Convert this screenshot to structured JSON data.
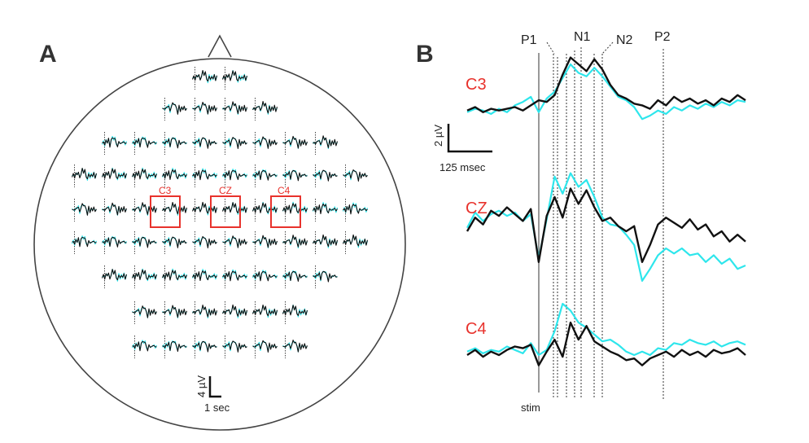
{
  "colors": {
    "black": "#111111",
    "cyan": "#2ee6ec",
    "red": "#e8322c",
    "outline": "#444444"
  },
  "panel_a": {
    "letter": "A",
    "electrode_labels": [
      "C3",
      "CZ",
      "C4"
    ],
    "scalebar": {
      "y_label": "4 µV",
      "x_label": "1 sec"
    }
  },
  "panel_b": {
    "letter": "B",
    "markers": [
      "P1",
      "N1",
      "N2",
      "P2"
    ],
    "stim_label": "stim",
    "scalebar": {
      "y_label": "2 µV",
      "x_label": "125 msec"
    }
  },
  "chart_data": [
    {
      "type": "line",
      "title": "",
      "electrodes": [
        {
          "row": 1,
          "count": 2
        },
        {
          "row": 2,
          "count": 4
        },
        {
          "row": 3,
          "count": 8
        },
        {
          "row": 4,
          "count": 10
        },
        {
          "row": 5,
          "count": 10,
          "highlighted": [
            "C3",
            "CZ",
            "C4"
          ]
        },
        {
          "row": 6,
          "count": 10
        },
        {
          "row": 7,
          "count": 8
        },
        {
          "row": 8,
          "count": 6
        },
        {
          "row": 9,
          "count": 6
        }
      ],
      "series": [
        {
          "name": "black"
        },
        {
          "name": "cyan"
        }
      ]
    },
    {
      "type": "line",
      "title": "",
      "xlabel": "",
      "ylabel": "",
      "panels": [
        {
          "label": "C3",
          "series": [
            {
              "name": "black",
              "values": [
                0.3,
                0.5,
                0.2,
                0.4,
                0.3,
                0.4,
                0.5,
                0.3,
                0.6,
                0.9,
                0.8,
                1.2,
                2.4,
                3.4,
                3.0,
                2.6,
                3.3,
                2.7,
                1.8,
                1.2,
                1.0,
                0.7,
                0.6,
                0.4,
                0.9,
                0.6,
                1.1,
                0.8,
                1.0,
                0.7,
                0.9,
                0.6,
                1.0,
                0.8,
                1.2,
                0.9
              ]
            },
            {
              "name": "cyan",
              "values": [
                0.2,
                0.4,
                0.3,
                0.1,
                0.4,
                0.2,
                0.6,
                0.8,
                1.1,
                0.2,
                1.0,
                1.4,
                2.2,
                3.0,
                2.5,
                2.3,
                2.8,
                2.3,
                1.7,
                1.1,
                0.9,
                0.5,
                -0.2,
                0.0,
                0.3,
                0.1,
                0.5,
                0.3,
                0.6,
                0.4,
                0.7,
                0.5,
                0.8,
                0.6,
                0.9,
                0.8
              ]
            }
          ]
        },
        {
          "label": "CZ",
          "series": [
            {
              "name": "black",
              "values": [
                0.0,
                0.8,
                0.4,
                1.2,
                0.9,
                1.4,
                1.0,
                0.6,
                1.3,
                -1.8,
                0.9,
                2.0,
                0.8,
                2.5,
                1.6,
                2.4,
                1.4,
                0.6,
                0.8,
                0.3,
                0.0,
                0.3,
                -1.8,
                -0.8,
                0.4,
                0.8,
                0.5,
                0.2,
                0.7,
                0.1,
                0.4,
                -0.3,
                0.0,
                -0.6,
                -0.2,
                -0.6
              ]
            },
            {
              "name": "cyan",
              "values": [
                0.2,
                1.1,
                0.6,
                1.0,
                1.2,
                0.9,
                1.1,
                0.6,
                1.0,
                -1.6,
                0.7,
                3.2,
                2.2,
                3.4,
                2.6,
                3.0,
                2.0,
                0.8,
                0.4,
                0.3,
                -0.2,
                -0.8,
                -2.9,
                -2.2,
                -1.4,
                -1.0,
                -1.3,
                -1.0,
                -1.4,
                -1.3,
                -1.8,
                -1.4,
                -1.9,
                -1.6,
                -2.2,
                -2.0
              ]
            }
          ]
        },
        {
          "label": "C4",
          "series": [
            {
              "name": "black",
              "values": [
                0.0,
                0.3,
                -0.1,
                0.2,
                0.0,
                0.3,
                0.5,
                0.4,
                0.6,
                -0.6,
                0.2,
                0.9,
                -0.1,
                1.9,
                0.9,
                1.7,
                0.8,
                0.5,
                0.2,
                0.0,
                -0.3,
                -0.2,
                -0.6,
                -0.2,
                0.0,
                0.2,
                -0.1,
                0.3,
                0.0,
                0.2,
                -0.1,
                0.3,
                0.1,
                0.2,
                0.4,
                0.0
              ]
            },
            {
              "name": "cyan",
              "values": [
                0.2,
                0.4,
                0.1,
                0.3,
                0.2,
                0.5,
                0.3,
                0.1,
                0.7,
                0.0,
                0.3,
                1.4,
                3.0,
                2.6,
                1.9,
                1.6,
                1.2,
                0.8,
                0.9,
                0.6,
                0.2,
                0.0,
                0.2,
                0.0,
                0.4,
                0.3,
                0.7,
                0.6,
                0.9,
                0.7,
                0.6,
                0.8,
                0.5,
                0.7,
                0.8,
                0.6
              ]
            }
          ]
        }
      ]
    }
  ]
}
